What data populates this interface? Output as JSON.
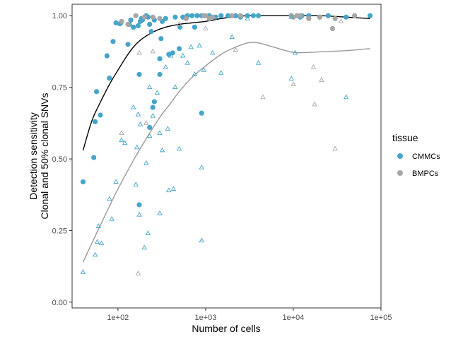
{
  "chart_data": {
    "type": "scatter",
    "x_scale": "log10",
    "xlim": [
      30,
      100000
    ],
    "ylim": [
      -0.02,
      1.04
    ],
    "xlabel": "Number of cells",
    "ylabel": [
      "Detection sensitivity",
      "Clonal and 50% clonal SNVs"
    ],
    "x_ticks": [
      {
        "value": 100,
        "label": "1e+02"
      },
      {
        "value": 1000,
        "label": "1e+03"
      },
      {
        "value": 10000,
        "label": "1e+04"
      },
      {
        "value": 100000,
        "label": "1e+05"
      }
    ],
    "y_ticks": [
      {
        "value": 0.0,
        "label": "0.00"
      },
      {
        "value": 0.25,
        "label": "0.25"
      },
      {
        "value": 0.5,
        "label": "0.50"
      },
      {
        "value": 0.75,
        "label": "0.75"
      },
      {
        "value": 1.0,
        "label": "1.00"
      }
    ],
    "grid": false,
    "legend": {
      "title": "tissue",
      "position": "right",
      "entries": [
        {
          "label": "CMMCs",
          "color": "#45A4C9"
        },
        {
          "label": "BMPCs",
          "color": "#A6A6A6"
        }
      ]
    },
    "series": [
      {
        "name": "CMMCs",
        "marker": "filled-circle",
        "color": "#45A4C9",
        "points": [
          [
            40,
            0.42
          ],
          [
            53,
            0.505
          ],
          [
            55,
            0.63
          ],
          [
            57,
            0.735
          ],
          [
            63,
            0.653
          ],
          [
            75,
            0.86
          ],
          [
            80,
            0.782
          ],
          [
            88,
            0.91
          ],
          [
            95,
            0.975
          ],
          [
            105,
            0.972
          ],
          [
            108,
            0.975
          ],
          [
            130,
            0.9
          ],
          [
            135,
            0.97
          ],
          [
            140,
            0.985
          ],
          [
            150,
            0.96
          ],
          [
            170,
            0.965
          ],
          [
            175,
            0.795
          ],
          [
            180,
            0.98
          ],
          [
            185,
            0.99
          ],
          [
            190,
            0.985
          ],
          [
            200,
            0.995
          ],
          [
            210,
            1.0
          ],
          [
            220,
            0.995
          ],
          [
            230,
            0.97
          ],
          [
            240,
            0.945
          ],
          [
            250,
            0.68
          ],
          [
            260,
            0.985
          ],
          [
            300,
            0.795
          ],
          [
            310,
            0.92
          ],
          [
            320,
            0.98
          ],
          [
            350,
            0.99
          ],
          [
            380,
            0.865
          ],
          [
            420,
            0.87
          ],
          [
            450,
            0.995
          ],
          [
            500,
            0.885
          ],
          [
            510,
            0.96
          ],
          [
            550,
            0.995
          ],
          [
            620,
            1.0
          ],
          [
            700,
            1.0
          ],
          [
            750,
            0.96
          ],
          [
            800,
            1.0
          ],
          [
            900,
            1.0
          ],
          [
            1100,
            1.0
          ],
          [
            1300,
            0.995
          ],
          [
            1500,
            1.0
          ],
          [
            1800,
            1.0
          ],
          [
            2200,
            1.0
          ],
          [
            2500,
            0.995
          ],
          [
            3000,
            1.0
          ],
          [
            3500,
            1.0
          ],
          [
            4000,
            1.0
          ],
          [
            9500,
            1.0
          ],
          [
            12000,
            0.995
          ],
          [
            20000,
            0.995
          ],
          [
            25000,
            1.0
          ],
          [
            40000,
            0.995
          ],
          [
            75000,
            1.0
          ],
          [
            230,
            0.61
          ],
          [
            175,
            0.34
          ],
          [
            260,
            0.7
          ],
          [
            900,
            0.66
          ],
          [
            300,
            0.85
          ],
          [
            150,
            0.96
          ],
          [
            12500,
            1.0
          ],
          [
            15000,
            1.0
          ]
        ]
      },
      {
        "name": "BMPCs",
        "marker": "filled-circle",
        "color": "#A6A6A6",
        "points": [
          [
            160,
            1.0
          ],
          [
            200,
            0.995
          ],
          [
            250,
            0.995
          ],
          [
            300,
            0.99
          ],
          [
            600,
            0.99
          ],
          [
            950,
            1.0
          ],
          [
            1000,
            1.0
          ],
          [
            1200,
            0.995
          ],
          [
            2000,
            1.0
          ],
          [
            2500,
            1.0
          ],
          [
            9500,
            1.0
          ],
          [
            10000,
            0.995
          ],
          [
            11000,
            1.0
          ],
          [
            12000,
            1.0
          ],
          [
            15000,
            0.99
          ],
          [
            20000,
            0.995
          ],
          [
            28000,
            0.955
          ],
          [
            30000,
            0.99
          ],
          [
            50000,
            1.0
          ],
          [
            110,
            0.98
          ],
          [
            130,
            0.97
          ],
          [
            1100,
            0.99
          ]
        ]
      },
      {
        "name": "CMMCs",
        "marker": "open-triangle",
        "color": "#45A4C9",
        "points": [
          [
            40,
            0.105
          ],
          [
            55,
            0.165
          ],
          [
            58,
            0.21
          ],
          [
            60,
            0.265
          ],
          [
            65,
            0.205
          ],
          [
            80,
            0.36
          ],
          [
            85,
            0.29
          ],
          [
            95,
            0.42
          ],
          [
            110,
            0.565
          ],
          [
            120,
            0.555
          ],
          [
            160,
            0.41
          ],
          [
            165,
            0.54
          ],
          [
            175,
            0.305
          ],
          [
            180,
            0.62
          ],
          [
            200,
            0.19
          ],
          [
            210,
            0.485
          ],
          [
            220,
            0.24
          ],
          [
            230,
            0.58
          ],
          [
            250,
            0.65
          ],
          [
            280,
            0.73
          ],
          [
            300,
            0.59
          ],
          [
            300,
            0.31
          ],
          [
            320,
            0.53
          ],
          [
            350,
            0.82
          ],
          [
            370,
            0.605
          ],
          [
            380,
            0.39
          ],
          [
            400,
            0.86
          ],
          [
            430,
            0.395
          ],
          [
            450,
            0.75
          ],
          [
            500,
            0.535
          ],
          [
            550,
            0.86
          ],
          [
            620,
            0.835
          ],
          [
            680,
            0.89
          ],
          [
            750,
            0.795
          ],
          [
            850,
            0.895
          ],
          [
            900,
            0.215
          ],
          [
            900,
            0.47
          ],
          [
            950,
            0.81
          ],
          [
            1200,
            0.87
          ],
          [
            1500,
            0.8
          ],
          [
            2000,
            0.925
          ],
          [
            3000,
            0.99
          ],
          [
            4000,
            0.835
          ],
          [
            9500,
            0.78
          ],
          [
            10500,
            0.87
          ],
          [
            40000,
            0.715
          ],
          [
            9500,
            0.995
          ],
          [
            150,
            0.68
          ],
          [
            170,
            0.655
          ],
          [
            230,
            0.75
          ]
        ]
      },
      {
        "name": "BMPCs",
        "marker": "open-triangle",
        "color": "#A6A6A6",
        "points": [
          [
            110,
            0.59
          ],
          [
            170,
            0.1
          ],
          [
            175,
            0.87
          ],
          [
            210,
            0.625
          ],
          [
            250,
            0.875
          ],
          [
            500,
            0.97
          ],
          [
            1000,
            0.955
          ],
          [
            2200,
            0.88
          ],
          [
            4500,
            0.715
          ],
          [
            10000,
            0.76
          ],
          [
            17000,
            0.82
          ],
          [
            17500,
            0.69
          ],
          [
            21000,
            0.775
          ],
          [
            30000,
            0.535
          ],
          [
            35000,
            0.98
          ]
        ]
      }
    ],
    "smooth_curves": [
      {
        "name": "CMMCs",
        "color": "#000000",
        "points": [
          [
            40,
            0.53
          ],
          [
            50,
            0.63
          ],
          [
            60,
            0.685
          ],
          [
            80,
            0.76
          ],
          [
            100,
            0.81
          ],
          [
            130,
            0.865
          ],
          [
            160,
            0.9
          ],
          [
            200,
            0.925
          ],
          [
            260,
            0.945
          ],
          [
            350,
            0.96
          ],
          [
            500,
            0.97
          ],
          [
            700,
            0.975
          ],
          [
            1000,
            0.98
          ],
          [
            1500,
            0.99
          ],
          [
            2000,
            0.995
          ],
          [
            3000,
            1.0
          ],
          [
            5000,
            1.0
          ],
          [
            10000,
            1.0
          ],
          [
            20000,
            1.0
          ],
          [
            40000,
            0.995
          ],
          [
            75000,
            0.99
          ]
        ]
      },
      {
        "name": "BMPCs",
        "color": "#999999",
        "points": [
          [
            40,
            0.14
          ],
          [
            60,
            0.255
          ],
          [
            80,
            0.335
          ],
          [
            100,
            0.395
          ],
          [
            150,
            0.495
          ],
          [
            200,
            0.56
          ],
          [
            300,
            0.645
          ],
          [
            400,
            0.695
          ],
          [
            500,
            0.735
          ],
          [
            700,
            0.785
          ],
          [
            1000,
            0.825
          ],
          [
            1500,
            0.865
          ],
          [
            2000,
            0.885
          ],
          [
            3000,
            0.905
          ],
          [
            4000,
            0.905
          ],
          [
            6000,
            0.89
          ],
          [
            10000,
            0.872
          ],
          [
            15000,
            0.872
          ],
          [
            25000,
            0.875
          ],
          [
            40000,
            0.878
          ],
          [
            75000,
            0.885
          ]
        ]
      }
    ]
  }
}
